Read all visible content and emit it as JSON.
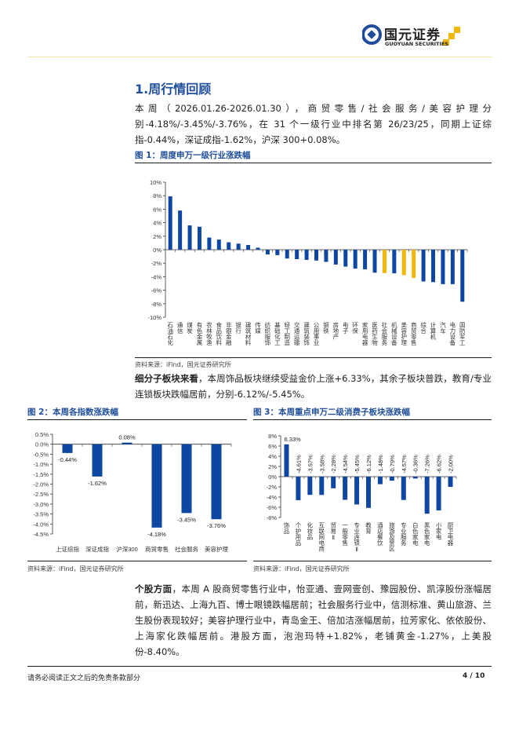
{
  "header": {
    "brand_cn": "国元证券",
    "brand_en": "GUOYUAN SECURITIES"
  },
  "section_title": "1.周行情回顾",
  "para1": "本周（2026.01.26-2026.01.30），商贸零售/社会服务/美容护理分别-4.18%/-3.45%/-3.76%，在 31 个一级行业中排名第 26/23/25，同期上证综指-0.44%，深证成指-1.62%，沪深 300+0.08%。",
  "fig1_caption": "图 1：周度申万一级行业涨跌幅",
  "source": "资料来源：iFind，国元证券研究所",
  "para2_bold": "细分子板块来看",
  "para2": "，本周饰品板块继续受益金价上涨+6.33%，其余子板块普跌，教育/专业连锁板块跌幅居前，分别-6.12%/-5.45%。",
  "fig2_caption": "图 2：本周各指数涨跌幅",
  "fig3_caption": "图 3：本周重点申万二级消费子板块涨跌幅",
  "para3_bold": "个股方面",
  "para3": "，本周 A 股商贸零售行业中，怡亚通、壹网壹创、豫园股份、凯淳股份涨幅居前，新迅达、上海九百、博士眼镜跌幅居前；社会服务行业中，信测标准、黄山旅游、兰生股份表现较好；美容护理行业中，青岛金王、倍加洁涨幅居前，拉芳家化、依依股份、上海家化跌幅居前。港股方面，泡泡玛特+1.82%，老铺黄金-1.27%，上美股份-8.40%。",
  "footer": {
    "disclaimer": "请务必阅读正文之后的免责条款部分",
    "page": "4 / 10"
  },
  "colors": {
    "bar": "#0d47a1",
    "highlight": "#f2b705",
    "title": "#1f4e9c"
  },
  "chart_data": [
    {
      "type": "bar",
      "title": "周度申万一级行业涨跌幅",
      "ylim": [
        -10,
        10
      ],
      "yticks": [
        10,
        8,
        6,
        4,
        2,
        0,
        -2,
        -4,
        -6,
        -8,
        -10
      ],
      "tick_labels": [
        "10%",
        "8%",
        "6%",
        "4%",
        "2%",
        "0%",
        "-2%",
        "-4%",
        "-6%",
        "-8%",
        "-10%"
      ],
      "categories": [
        "石油石化",
        "通信",
        "煤炭",
        "有色金属",
        "农林牧渔",
        "食品饮料",
        "非银金融",
        "银行",
        "建筑材料",
        "传媒",
        "纺织服饰",
        "基础化工",
        "轻工制造",
        "交通运输",
        "建筑装饰",
        "公用事业",
        "钢铁",
        "房地产",
        "电子",
        "环保",
        "家用电器",
        "医药生物",
        "社会服务",
        "机械设备",
        "美容护理",
        "商贸零售",
        "综合",
        "计算机",
        "汽车",
        "电力设备",
        "国防军工"
      ],
      "values": [
        7.9,
        5.8,
        3.6,
        3.4,
        1.8,
        1.5,
        1.1,
        0.9,
        0.7,
        0.3,
        -0.7,
        -0.8,
        -1.3,
        -1.4,
        -1.5,
        -1.6,
        -1.8,
        -2.2,
        -2.5,
        -2.8,
        -2.9,
        -3.4,
        -3.45,
        -3.5,
        -3.76,
        -4.18,
        -4.7,
        -4.8,
        -5.1,
        -5.1,
        -7.7
      ],
      "highlighted": [
        "社会服务",
        "美容护理",
        "商贸零售"
      ]
    },
    {
      "type": "bar",
      "title": "本周各指数涨跌幅",
      "ylim": [
        -4.5,
        0.5
      ],
      "yticks": [
        0.5,
        0,
        -0.5,
        -1,
        -1.5,
        -2,
        -2.5,
        -3,
        -3.5,
        -4,
        -4.5
      ],
      "tick_labels": [
        "0.5%",
        "0.0%",
        "-0.5%",
        "-1.0%",
        "-1.5%",
        "-2.0%",
        "-2.5%",
        "-3.0%",
        "-3.5%",
        "-4.0%",
        "-4.5%"
      ],
      "categories": [
        "上证综指",
        "深证成指",
        "沪深300",
        "商贸零售",
        "社会服务",
        "美容护理"
      ],
      "values": [
        -0.44,
        -1.62,
        0.08,
        -4.18,
        -3.45,
        -3.76
      ],
      "data_labels": [
        "-0.44%",
        "-1.62%",
        "0.08%",
        "-4.18%",
        "-3.45%",
        "-3.76%"
      ]
    },
    {
      "type": "bar",
      "title": "本周重点申万二级消费子板块涨跌幅",
      "ylim": [
        -8,
        8
      ],
      "yticks": [
        8,
        6,
        4,
        2,
        0,
        -2,
        -4,
        -6,
        -8
      ],
      "tick_labels": [
        "8%",
        "6%",
        "4%",
        "2%",
        "0%",
        "-2%",
        "-4%",
        "-6%",
        "-8%"
      ],
      "categories": [
        "饰品",
        "个护用品",
        "化妆品",
        "互联网电商",
        "贸易Ⅱ",
        "一般零售",
        "专业连锁Ⅱ",
        "教育",
        "酒店餐饮",
        "旅游及景区",
        "专业服务",
        "白色家电",
        "黑色家电",
        "小家电",
        "厨卫电器"
      ],
      "values": [
        6.33,
        -4.61,
        -3.57,
        -3.58,
        -2.28,
        -4.54,
        -5.45,
        -6.12,
        -1.48,
        -0.79,
        -4.57,
        -0.36,
        -7.26,
        -6.62,
        -2.0
      ],
      "data_labels": [
        "6.33%",
        "-4.61%",
        "-3.57%",
        "-3.58%",
        "-2.28%",
        "-4.54%",
        "-5.45%",
        "-6.12%",
        "-1.48%",
        "-0.79%",
        "-4.57%",
        "-0.36%",
        "-7.26%",
        "-6.62%",
        "-2.00%"
      ]
    }
  ]
}
